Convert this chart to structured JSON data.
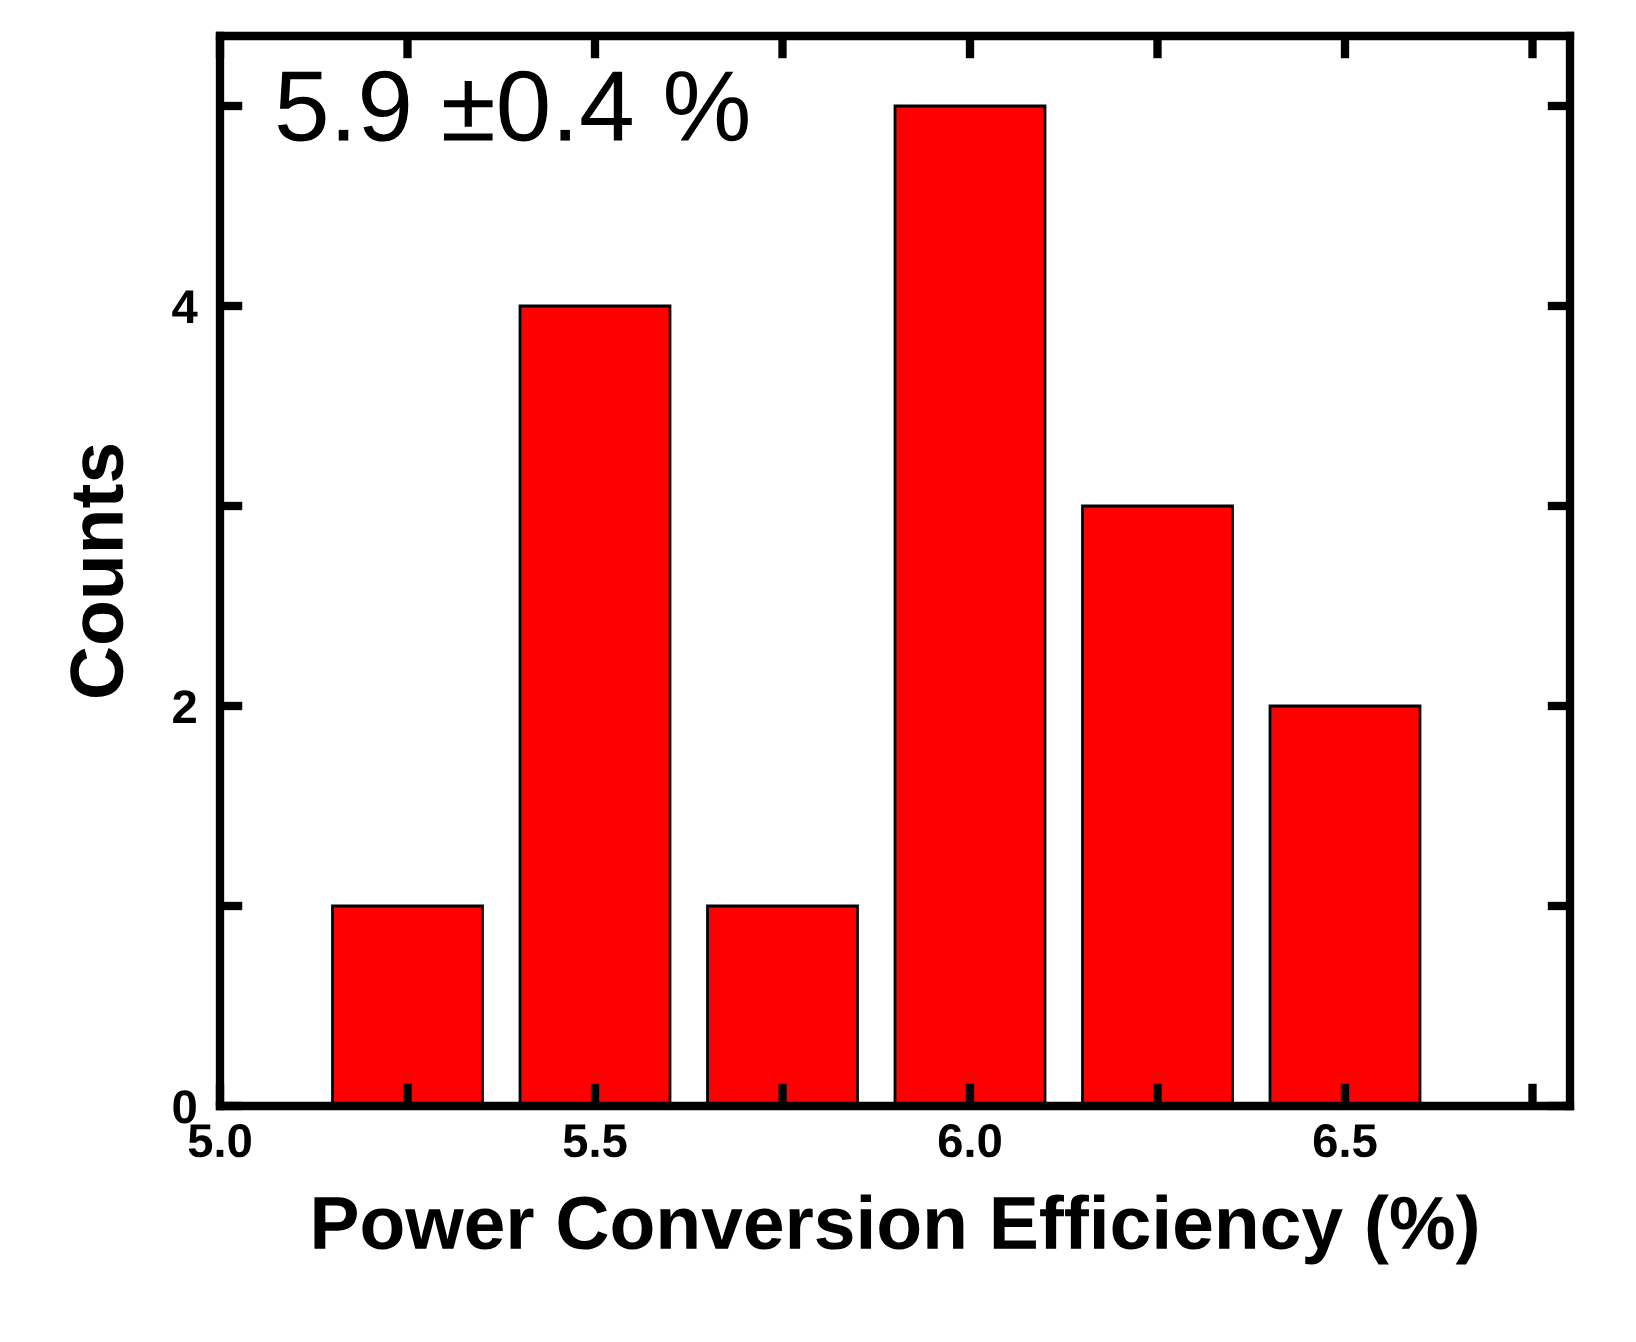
{
  "chart_data": {
    "type": "histogram",
    "xlabel": "Power Conversion Efficiency (%)",
    "ylabel": "Counts",
    "bins": [
      5.125,
      5.375,
      5.625,
      5.875,
      6.125,
      6.375,
      6.625
    ],
    "values": [
      1,
      4,
      1,
      5,
      3,
      2
    ],
    "color": "#ff0000",
    "xlim": [
      5.0,
      6.8
    ],
    "ylim": [
      0,
      5.35
    ],
    "xticks": [
      {
        "value": 5,
        "label": "5.0"
      },
      {
        "value": 5.25,
        "label": null
      },
      5.5,
      {
        "value": 5.75,
        "label": null
      },
      {
        "value": 6,
        "label": "6.0"
      },
      {
        "value": 6.25,
        "label": null
      },
      6.5,
      {
        "value": 6.75,
        "label": null
      }
    ],
    "yticks": [
      0,
      {
        "value": 1,
        "label": null
      },
      2,
      {
        "value": 3,
        "label": null
      },
      4,
      {
        "value": 5,
        "label": null
      }
    ],
    "annotations": [
      "5.9 ±0.4 %"
    ],
    "grid": false,
    "legend": false
  }
}
